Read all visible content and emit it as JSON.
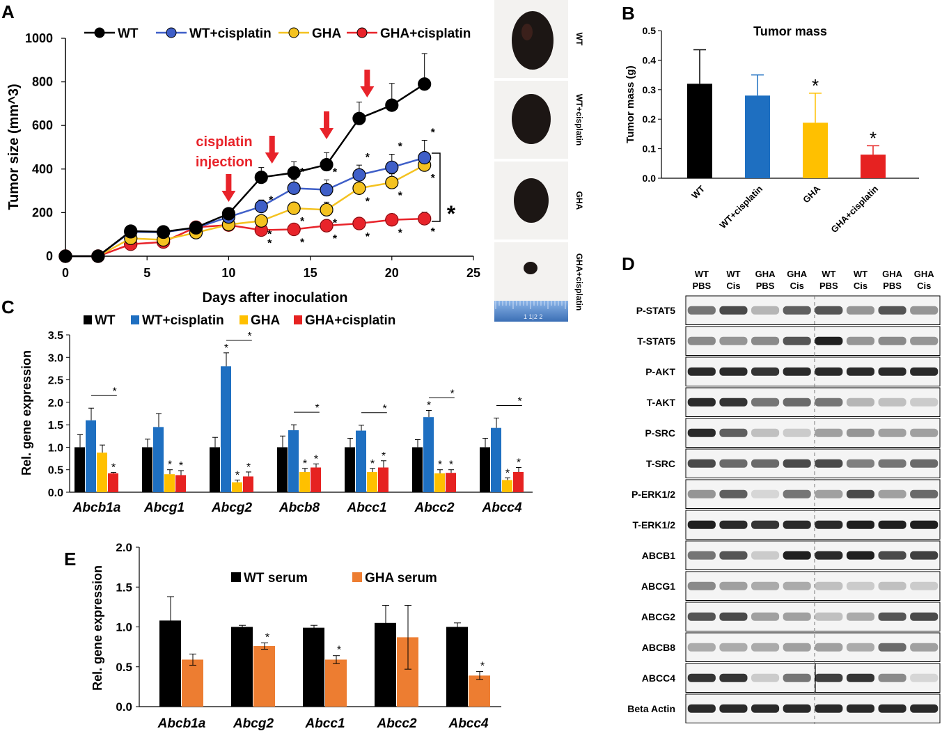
{
  "colors": {
    "wt": "#000000",
    "wt_cis": "#3f5fc8",
    "gha": "#f4c220",
    "gha_cis": "#e8232a",
    "bar_blue": "#1e6fc1",
    "bar_yellow": "#ffc000",
    "bar_red": "#e62221",
    "serum_orange": "#ed7d31",
    "arrow": "#e8232a"
  },
  "panel_a": {
    "label": "A",
    "annotation_line1": "cisplatin",
    "annotation_line2": "injection",
    "significance_mark": "*",
    "chart_data": {
      "type": "line",
      "xlabel": "Days after inoculation",
      "ylabel": "Tumor size (mm^3)",
      "xlim": [
        0,
        25
      ],
      "ylim": [
        0,
        1000
      ],
      "xticks": [
        "0",
        "5",
        "10",
        "15",
        "20",
        "25"
      ],
      "yticks": [
        "0",
        "200",
        "400",
        "600",
        "800",
        "1000"
      ],
      "x": [
        0,
        2,
        4,
        6,
        8,
        10,
        12,
        14,
        16,
        18,
        20,
        22
      ],
      "injection_days": [
        10,
        13,
        16,
        19
      ],
      "series": [
        {
          "name": "WT",
          "values": [
            0,
            0,
            115,
            112,
            132,
            195,
            362,
            383,
            420,
            632,
            693,
            790
          ],
          "err": [
            0,
            0,
            15,
            12,
            12,
            20,
            45,
            50,
            55,
            75,
            100,
            140
          ]
        },
        {
          "name": "WT+cisplatin",
          "values": [
            0,
            0,
            112,
            110,
            130,
            180,
            228,
            312,
            305,
            373,
            408,
            452
          ],
          "err": [
            0,
            0,
            12,
            10,
            12,
            22,
            30,
            40,
            45,
            45,
            60,
            80
          ]
        },
        {
          "name": "GHA",
          "values": [
            0,
            0,
            82,
            75,
            108,
            145,
            162,
            220,
            213,
            312,
            338,
            418
          ],
          "err": [
            0,
            0,
            12,
            10,
            12,
            15,
            20,
            25,
            35,
            35,
            40,
            40
          ]
        },
        {
          "name": "GHA+cisplatin",
          "values": [
            0,
            0,
            55,
            65,
            133,
            143,
            120,
            123,
            140,
            150,
            167,
            172
          ],
          "err": [
            0,
            0,
            10,
            10,
            15,
            18,
            18,
            20,
            22,
            20,
            28,
            30
          ]
        }
      ]
    }
  },
  "panel_photos": {
    "labels": [
      "WT",
      "WT+cisplatin",
      "GHA",
      "GHA+cisplatin"
    ],
    "ruler_marks": "1  1|2  2"
  },
  "panel_b": {
    "label": "B",
    "chart_data": {
      "type": "bar",
      "title": "Tumor mass",
      "ylabel": "Tumor mass (g)",
      "ylim": [
        0,
        0.5
      ],
      "yticks": [
        "0.0",
        "0.1",
        "0.2",
        "0.3",
        "0.4",
        "0.5"
      ],
      "categories": [
        "WT",
        "WT+cisplatin",
        "GHA",
        "GHA+cisplatin"
      ],
      "values": [
        0.32,
        0.28,
        0.188,
        0.08
      ],
      "err": [
        0.115,
        0.07,
        0.1,
        0.03
      ],
      "stars": [
        "",
        "",
        "*",
        "*"
      ]
    }
  },
  "panel_c": {
    "label": "C",
    "chart_data": {
      "type": "bar",
      "ylabel": "Rel. gene expression",
      "ylim": [
        0,
        3.5
      ],
      "yticks": [
        "0.0",
        "0.5",
        "1.0",
        "1.5",
        "2.0",
        "2.5",
        "3.0",
        "3.5"
      ],
      "categories": [
        "Abcb1a",
        "Abcg1",
        "Abcg2",
        "Abcb8",
        "Abcc1",
        "Abcc2",
        "Abcc4"
      ],
      "series": [
        {
          "name": "WT",
          "values": [
            1.0,
            1.0,
            1.0,
            1.0,
            1.0,
            1.0,
            1.0
          ],
          "err": [
            0.28,
            0.18,
            0.22,
            0.25,
            0.2,
            0.17,
            0.2
          ]
        },
        {
          "name": "WT+cisplatin",
          "values": [
            1.6,
            1.45,
            2.8,
            1.38,
            1.37,
            1.67,
            1.43
          ],
          "err": [
            0.27,
            0.3,
            0.3,
            0.12,
            0.12,
            0.15,
            0.22
          ]
        },
        {
          "name": "GHA",
          "values": [
            0.88,
            0.4,
            0.22,
            0.45,
            0.45,
            0.42,
            0.27
          ],
          "err": [
            0.17,
            0.1,
            0.05,
            0.08,
            0.08,
            0.08,
            0.05
          ]
        },
        {
          "name": "GHA+cisplatin",
          "values": [
            0.42,
            0.38,
            0.35,
            0.55,
            0.55,
            0.43,
            0.45
          ],
          "err": [
            0.02,
            0.1,
            0.1,
            0.08,
            0.15,
            0.07,
            0.1
          ]
        }
      ],
      "stars_wtcis": [
        false,
        false,
        true,
        false,
        false,
        true,
        false
      ],
      "stars_gha": [
        false,
        true,
        true,
        true,
        true,
        true,
        true
      ],
      "stars_ghacis": [
        true,
        true,
        true,
        true,
        true,
        true,
        true
      ],
      "brackets": [
        0,
        2,
        3,
        4,
        5,
        6
      ]
    }
  },
  "panel_d": {
    "label": "D",
    "column_headers": [
      {
        "line1": "WT",
        "line2": "PBS"
      },
      {
        "line1": "WT",
        "line2": "Cis"
      },
      {
        "line1": "GHA",
        "line2": "PBS"
      },
      {
        "line1": "GHA",
        "line2": "Cis"
      },
      {
        "line1": "WT",
        "line2": "PBS"
      },
      {
        "line1": "WT",
        "line2": "Cis"
      },
      {
        "line1": "GHA",
        "line2": "PBS"
      },
      {
        "line1": "GHA",
        "line2": "Cis"
      }
    ],
    "rows": [
      "P-STAT5",
      "T-STAT5",
      "P-AKT",
      "T-AKT",
      "P-SRC",
      "T-SRC",
      "P-ERK1/2",
      "T-ERK1/2",
      "ABCB1",
      "ABCG1",
      "ABCG2",
      "ABCB8",
      "ABCC4",
      "Beta Actin"
    ],
    "band_intensity": [
      [
        0.55,
        0.75,
        0.25,
        0.65,
        0.7,
        0.4,
        0.7,
        0.4
      ],
      [
        0.45,
        0.4,
        0.45,
        0.7,
        0.95,
        0.4,
        0.45,
        0.4
      ],
      [
        0.9,
        0.9,
        0.85,
        0.9,
        0.9,
        0.9,
        0.9,
        0.9
      ],
      [
        0.9,
        0.85,
        0.55,
        0.6,
        0.55,
        0.25,
        0.2,
        0.15
      ],
      [
        0.9,
        0.65,
        0.2,
        0.15,
        0.35,
        0.4,
        0.35,
        0.35
      ],
      [
        0.75,
        0.6,
        0.6,
        0.75,
        0.75,
        0.5,
        0.55,
        0.6
      ],
      [
        0.4,
        0.65,
        0.1,
        0.55,
        0.35,
        0.75,
        0.35,
        0.6
      ],
      [
        0.95,
        0.9,
        0.85,
        0.9,
        0.9,
        0.95,
        0.95,
        0.95
      ],
      [
        0.55,
        0.7,
        0.15,
        0.95,
        0.9,
        0.95,
        0.75,
        0.8
      ],
      [
        0.45,
        0.35,
        0.3,
        0.3,
        0.2,
        0.15,
        0.2,
        0.15
      ],
      [
        0.7,
        0.75,
        0.35,
        0.35,
        0.2,
        0.3,
        0.7,
        0.75
      ],
      [
        0.3,
        0.3,
        0.3,
        0.35,
        0.35,
        0.3,
        0.6,
        0.35
      ],
      [
        0.85,
        0.85,
        0.15,
        0.55,
        0.8,
        0.85,
        0.45,
        0.1
      ],
      [
        0.9,
        0.9,
        0.9,
        0.9,
        0.9,
        0.9,
        0.9,
        0.9
      ]
    ]
  },
  "panel_e": {
    "label": "E",
    "chart_data": {
      "type": "bar",
      "ylabel": "Rel. gene expression",
      "ylim": [
        0,
        2.0
      ],
      "yticks": [
        "0.0",
        "0.5",
        "1.0",
        "1.5",
        "2.0"
      ],
      "categories": [
        "Abcb1a",
        "Abcg2",
        "Abcc1",
        "Abcc2",
        "Abcc4"
      ],
      "series": [
        {
          "name": "WT serum",
          "values": [
            1.08,
            1.0,
            0.99,
            1.05,
            1.0
          ],
          "err": [
            0.3,
            0.02,
            0.03,
            0.22,
            0.05
          ]
        },
        {
          "name": "GHA serum",
          "values": [
            0.59,
            0.76,
            0.59,
            0.87,
            0.39
          ],
          "err": [
            0.07,
            0.04,
            0.05,
            0.4,
            0.05
          ]
        }
      ],
      "stars": [
        false,
        true,
        true,
        false,
        true
      ]
    }
  }
}
